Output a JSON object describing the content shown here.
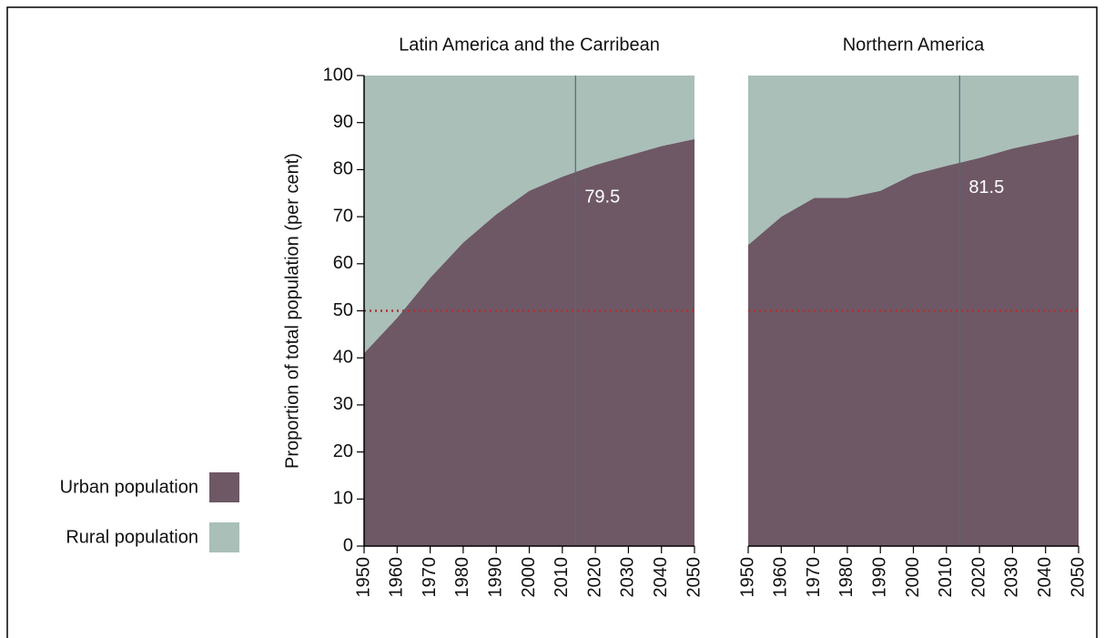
{
  "chart_data": [
    {
      "type": "area",
      "title": "Latin America and the Carribean",
      "y_label": "Proportion of total population (per cent)",
      "x": [
        1950,
        1960,
        1970,
        1980,
        1990,
        2000,
        2010,
        2020,
        2030,
        2040,
        2050
      ],
      "series": [
        {
          "name": "Urban population",
          "color": "#6e5865",
          "values": [
            41,
            48.5,
            57,
            64.5,
            70.5,
            75.5,
            78.5,
            81,
            83,
            85,
            86.5
          ]
        },
        {
          "name": "Rural population",
          "color": "#a9bfb8",
          "values": [
            59,
            51.5,
            43,
            35.5,
            29.5,
            24.5,
            21.5,
            19,
            17,
            15,
            13.5
          ]
        }
      ],
      "xlim": [
        1950,
        2050
      ],
      "xticks": [
        1950,
        1960,
        1970,
        1980,
        1990,
        2000,
        2010,
        2020,
        2030,
        2040,
        2050
      ],
      "ylim": [
        0,
        100
      ],
      "yticks": [
        0,
        10,
        20,
        30,
        40,
        50,
        60,
        70,
        80,
        90,
        100
      ],
      "reference_line": 50,
      "marker": {
        "x": 2014,
        "value": 79.5
      }
    },
    {
      "type": "area",
      "title": "Northern America",
      "x": [
        1950,
        1960,
        1970,
        1980,
        1990,
        2000,
        2010,
        2020,
        2030,
        2040,
        2050
      ],
      "series": [
        {
          "color": "#6e5865",
          "values": [
            64,
            70,
            74,
            74,
            75.5,
            79,
            80.8,
            82.5,
            84.5,
            86,
            87.5
          ]
        },
        {
          "color": "#a9bfb8",
          "values": [
            36,
            30,
            26,
            26,
            24.5,
            21,
            19.2,
            17.5,
            15.5,
            14,
            12.5
          ]
        }
      ],
      "xlim": [
        1950,
        2050
      ],
      "xticks": [
        1950,
        1960,
        1970,
        1980,
        1990,
        2000,
        2010,
        2020,
        2030,
        2040,
        2050
      ],
      "ylim": [
        0,
        100
      ],
      "reference_line": 50,
      "marker": {
        "x": 2014,
        "value": 81.5
      }
    }
  ]
}
